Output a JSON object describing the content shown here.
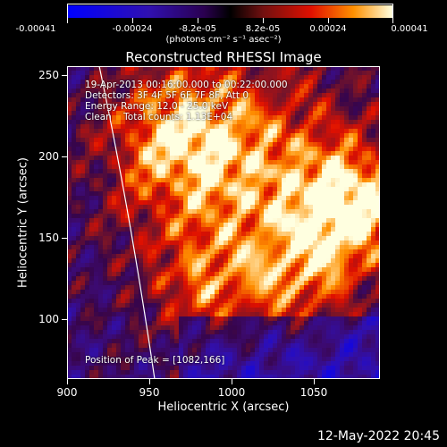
{
  "colorbar": {
    "tick_labels": [
      "-0.00041",
      "-0.00024",
      "-8.2e-05",
      "8.2e-05",
      "0.00024",
      "0.00041"
    ],
    "units": "(photons cm⁻² s⁻¹ asec⁻²)"
  },
  "title": "Reconstructed RHESSI Image",
  "info": {
    "time_range": "19-Apr-2013 00:16:00.000 to 00:22:00.000",
    "detectors": "Detectors: 3F 4F 5F 6F 7F 8F, Att 0",
    "energy": "Energy Range: 12.0 - 25.0 keV",
    "clean": "Clean    Total counts: 1.13E+04",
    "peak": "Position of Peak = [1082,166]"
  },
  "axes": {
    "xlabel": "Heliocentric X (arcsec)",
    "ylabel": "Heliocentric Y (arcsec)",
    "xlim": [
      900,
      1090
    ],
    "ylim": [
      62,
      255
    ],
    "xticks": [
      "900",
      "950",
      "1000",
      "1050"
    ],
    "yticks": [
      "100",
      "150",
      "200",
      "250"
    ]
  },
  "timestamp": "12-May-2022 20:45",
  "colors": {
    "background": "#000000",
    "limb": "#ffffff"
  }
}
